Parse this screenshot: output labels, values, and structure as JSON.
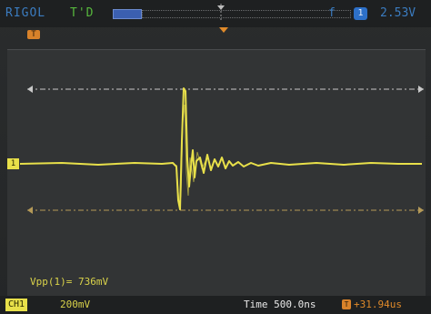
{
  "status": {
    "brand": "RIGOL",
    "run_state": "T'D",
    "trigger_source_icon": "f",
    "trigger_channel": "1",
    "trigger_level": "2.53V"
  },
  "markers": {
    "trigger_time_marker": "T",
    "channel_marker": "1"
  },
  "measurement": {
    "vpp": "Vpp(1)= 736mV"
  },
  "bottom": {
    "ch1_label": "CH1",
    "ch1_scale": "200mV",
    "timebase": "Time 500.0ns",
    "trigger_offset": "+31.94us"
  },
  "colors": {
    "waveform": "#e8e04a",
    "trigger": "#e08a2a",
    "status_blue": "#3b7cc0",
    "run_green": "#57b83d"
  }
}
